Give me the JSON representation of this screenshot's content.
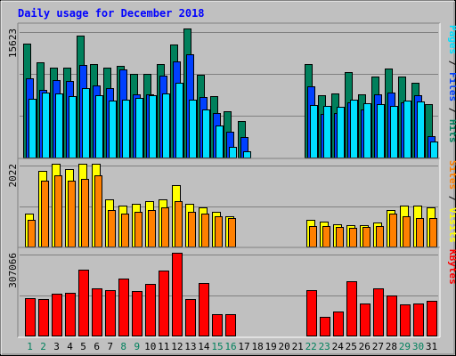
{
  "chart_data": {
    "type": "bar",
    "title": "Daily usage for December 2018",
    "categories": [
      "1",
      "2",
      "3",
      "4",
      "5",
      "6",
      "7",
      "8",
      "9",
      "10",
      "11",
      "12",
      "13",
      "14",
      "15",
      "16",
      "17",
      "18",
      "19",
      "20",
      "21",
      "22",
      "23",
      "24",
      "25",
      "26",
      "27",
      "28",
      "29",
      "30",
      "31"
    ],
    "weekend_categories": [
      "1",
      "2",
      "8",
      "9",
      "15",
      "16",
      "22",
      "23",
      "29",
      "30"
    ],
    "colors": {
      "hits": "#00805c",
      "files": "#0040ff",
      "pages": "#00e0ff",
      "visits": "#ffff00",
      "sites": "#ff8000",
      "kbytes": "#ff0000",
      "title": "#0000ff",
      "weekday_label": "#000000",
      "weekend_label": "#00805c"
    },
    "panels": [
      {
        "name": "usage",
        "ytick_label": "15623",
        "ylim": [
          0,
          15623
        ],
        "series_labels": [
          "Pages",
          "Files",
          "Hits"
        ],
        "series": [
          {
            "name": "Hits",
            "values": [
              13800,
              11500,
              10900,
              10900,
              14800,
              11300,
              10900,
              11100,
              10100,
              10100,
              11300,
              13700,
              15623,
              10000,
              7400,
              5600,
              4400,
              0,
              0,
              0,
              0,
              11300,
              7500,
              7800,
              10300,
              7700,
              9800,
              10800,
              9800,
              9100,
              6500
            ]
          },
          {
            "name": "Files",
            "values": [
              9600,
              8200,
              9400,
              9300,
              11200,
              8700,
              8400,
              10700,
              7600,
              7600,
              9900,
              11600,
              12500,
              7300,
              5400,
              3100,
              2500,
              0,
              0,
              0,
              0,
              8600,
              5300,
              5400,
              6700,
              5800,
              7600,
              7900,
              6700,
              7500,
              2600
            ]
          },
          {
            "name": "Pages",
            "values": [
              7100,
              7900,
              7800,
              7400,
              8400,
              7500,
              6900,
              7000,
              7200,
              7500,
              7800,
              9000,
              7000,
              5800,
              3900,
              1300,
              800,
              0,
              0,
              0,
              0,
              6400,
              6300,
              6100,
              7000,
              6600,
              6500,
              6300,
              6900,
              6800,
              1900
            ]
          }
        ]
      },
      {
        "name": "visits",
        "ytick_label": "2022",
        "ylim": [
          0,
          2022
        ],
        "series_labels": [
          "Sites",
          "Visits"
        ],
        "series": [
          {
            "name": "Visits",
            "values": [
              800,
              1850,
              2022,
              1900,
              2022,
              2022,
              1150,
              1000,
              1050,
              1100,
              1150,
              1500,
              1050,
              950,
              850,
              750,
              0,
              0,
              0,
              0,
              0,
              650,
              600,
              550,
              520,
              520,
              580,
              900,
              1000,
              1000,
              950
            ]
          },
          {
            "name": "Sites",
            "values": [
              650,
              1600,
              1750,
              1600,
              1650,
              1750,
              900,
              800,
              850,
              900,
              950,
              1100,
              850,
              800,
              750,
              700,
              0,
              0,
              0,
              0,
              0,
              500,
              500,
              480,
              450,
              470,
              500,
              800,
              750,
              700,
              700
            ]
          }
        ]
      },
      {
        "name": "kbytes",
        "ytick_label": "307066",
        "ylim": [
          0,
          307066
        ],
        "series_labels": [
          "KBytes"
        ],
        "series": [
          {
            "name": "KBytes",
            "values": [
              140000,
              135000,
              155000,
              160000,
              245000,
              175000,
              170000,
              210000,
              165000,
              190000,
              240000,
              307066,
              135000,
              195000,
              80000,
              80000,
              0,
              0,
              0,
              0,
              0,
              170000,
              70000,
              90000,
              200000,
              120000,
              175000,
              150000,
              115000,
              120000,
              130000
            ]
          }
        ]
      }
    ]
  }
}
